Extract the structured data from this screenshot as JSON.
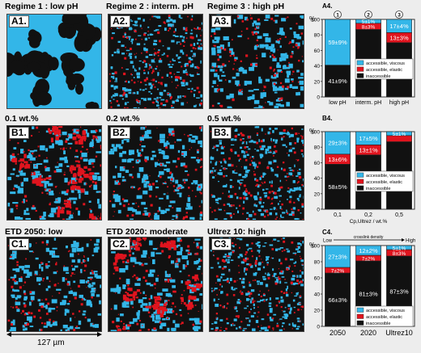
{
  "rows": [
    {
      "panels": [
        {
          "title": "Regime 1 : low pH",
          "label": "A1.",
          "mode": "blobs"
        },
        {
          "title": "Regime 2 : interm. pH",
          "label": "A2.",
          "mode": "fine"
        },
        {
          "title": "Regime 3 : high pH",
          "label": "A3.",
          "mode": "medium"
        }
      ],
      "chart_data": {
        "type": "bar",
        "title": "A4.",
        "ylabel": "%",
        "ylim": [
          0,
          100
        ],
        "yticks": [
          0,
          20,
          40,
          60,
          80,
          100
        ],
        "categories": [
          "low pH",
          "interm. pH",
          "high pH"
        ],
        "column_markers": [
          "1",
          "2",
          "3"
        ],
        "xlabel": "",
        "series": [
          {
            "name": "inaccessible",
            "values": [
              41,
              87,
              70
            ],
            "labels": [
              "41±9%",
              "87±3%",
              "70±3%"
            ]
          },
          {
            "name": "accessible, elastic",
            "values": [
              0,
              8,
              13
            ],
            "labels": [
              "",
              "8±3%",
              "13±3%"
            ]
          },
          {
            "name": "accessible, viscous",
            "values": [
              59,
              5,
              17
            ],
            "labels": [
              "59±9%",
              "5±1%",
              "17±4%"
            ]
          }
        ],
        "legend": "inside-middle"
      }
    },
    {
      "panels": [
        {
          "title": "0.1 wt.%",
          "label": "B1.",
          "mode": "red"
        },
        {
          "title": "0.2 wt.%",
          "label": "B2.",
          "mode": "medium"
        },
        {
          "title": "0.5 wt.%",
          "label": "B3.",
          "mode": "fine"
        }
      ],
      "chart_data": {
        "type": "bar",
        "title": "B4.",
        "ylabel": "%",
        "ylim": [
          0,
          100
        ],
        "yticks": [
          0,
          20,
          40,
          60,
          80,
          100
        ],
        "categories": [
          "0,1",
          "0,2",
          "0,5"
        ],
        "column_markers": [],
        "xlabel": "Cp,Ultrez / wt.%",
        "series": [
          {
            "name": "inaccessible",
            "values": [
              58,
              70,
              87
            ],
            "labels": [
              "58±5%",
              "70±5%",
              "87±3%"
            ]
          },
          {
            "name": "accessible, elastic",
            "values": [
              13,
              13,
              8
            ],
            "labels": [
              "13±6%",
              "13±1%",
              ""
            ]
          },
          {
            "name": "accessible, viscous",
            "values": [
              29,
              17,
              5
            ],
            "labels": [
              "29±3%",
              "17±5%",
              "5±1%"
            ]
          }
        ],
        "legend": "inside-middle"
      }
    },
    {
      "panels": [
        {
          "title": "ETD 2050: low",
          "label": "C1.",
          "mode": "medium"
        },
        {
          "title": "ETD 2020: moderate",
          "label": "C2.",
          "mode": "red"
        },
        {
          "title": "Ultrez 10: high",
          "label": "C3.",
          "mode": "fine"
        }
      ],
      "chart_data": {
        "type": "bar",
        "title": "C4.",
        "ylabel": "%",
        "ylim": [
          0,
          100
        ],
        "yticks": [
          0,
          20,
          40,
          60,
          80,
          100
        ],
        "categories": [
          "2050",
          "2020",
          "Ultrez10"
        ],
        "column_markers": [],
        "xlabel": "",
        "arrow_low": "Low",
        "arrow_text": "crosslink density",
        "arrow_high": "High",
        "series": [
          {
            "name": "inaccessible",
            "values": [
              66,
              81,
              87
            ],
            "labels": [
              "66±3%",
              "81±3%",
              "87±3%"
            ]
          },
          {
            "name": "accessible, elastic",
            "values": [
              7,
              7,
              8
            ],
            "labels": [
              "7±2%",
              "7±2%",
              "8±3%"
            ]
          },
          {
            "name": "accessible, viscous",
            "values": [
              27,
              12,
              5
            ],
            "labels": [
              "27±3%",
              "12±2%",
              "5±1%"
            ]
          }
        ],
        "legend": "inside-bottom"
      }
    }
  ],
  "colors": {
    "inaccessible": "#111111",
    "elastic": "#e0141e",
    "viscous": "#33b6e8",
    "background": "#ededed"
  },
  "scale_bar": "127 µm"
}
